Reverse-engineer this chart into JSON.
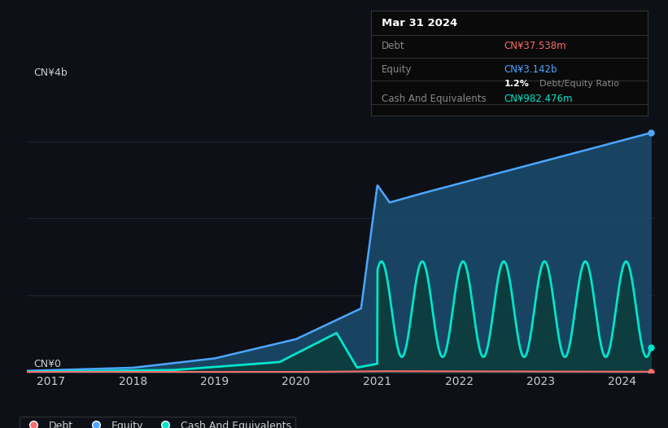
{
  "bg_color": "#0d1117",
  "plot_bg_color": "#0d1117",
  "tooltip": {
    "date": "Mar 31 2024",
    "debt_label": "Debt",
    "debt_value": "CN¥37.538m",
    "equity_label": "Equity",
    "equity_value": "CN¥3.142b",
    "ratio_value": "1.2%",
    "ratio_label": "Debt/Equity Ratio",
    "cash_label": "Cash And Equivalents",
    "cash_value": "CN¥982.476m"
  },
  "y_label_top": "CN¥4b",
  "y_label_bottom": "CN¥0",
  "x_ticks": [
    "2017",
    "2018",
    "2019",
    "2020",
    "2021",
    "2022",
    "2023",
    "2024"
  ],
  "x_tick_vals": [
    2017,
    2018,
    2019,
    2020,
    2021,
    2022,
    2023,
    2024
  ],
  "legend": [
    {
      "label": "Debt",
      "color": "#ff6b6b"
    },
    {
      "label": "Equity",
      "color": "#4da6ff"
    },
    {
      "label": "Cash And Equivalents",
      "color": "#00e5cc"
    }
  ],
  "debt_color": "#ff6b6b",
  "equity_color": "#4da6ff",
  "equity_fill_color": "#1a4a6b",
  "cash_color": "#00e5cc",
  "cash_fill_color": "#0d3d3d",
  "grid_color": "#2a2a3a",
  "text_color": "#cccccc",
  "ylim": [
    0,
    4
  ],
  "xlim_start": 2016.7,
  "xlim_end": 2024.4
}
